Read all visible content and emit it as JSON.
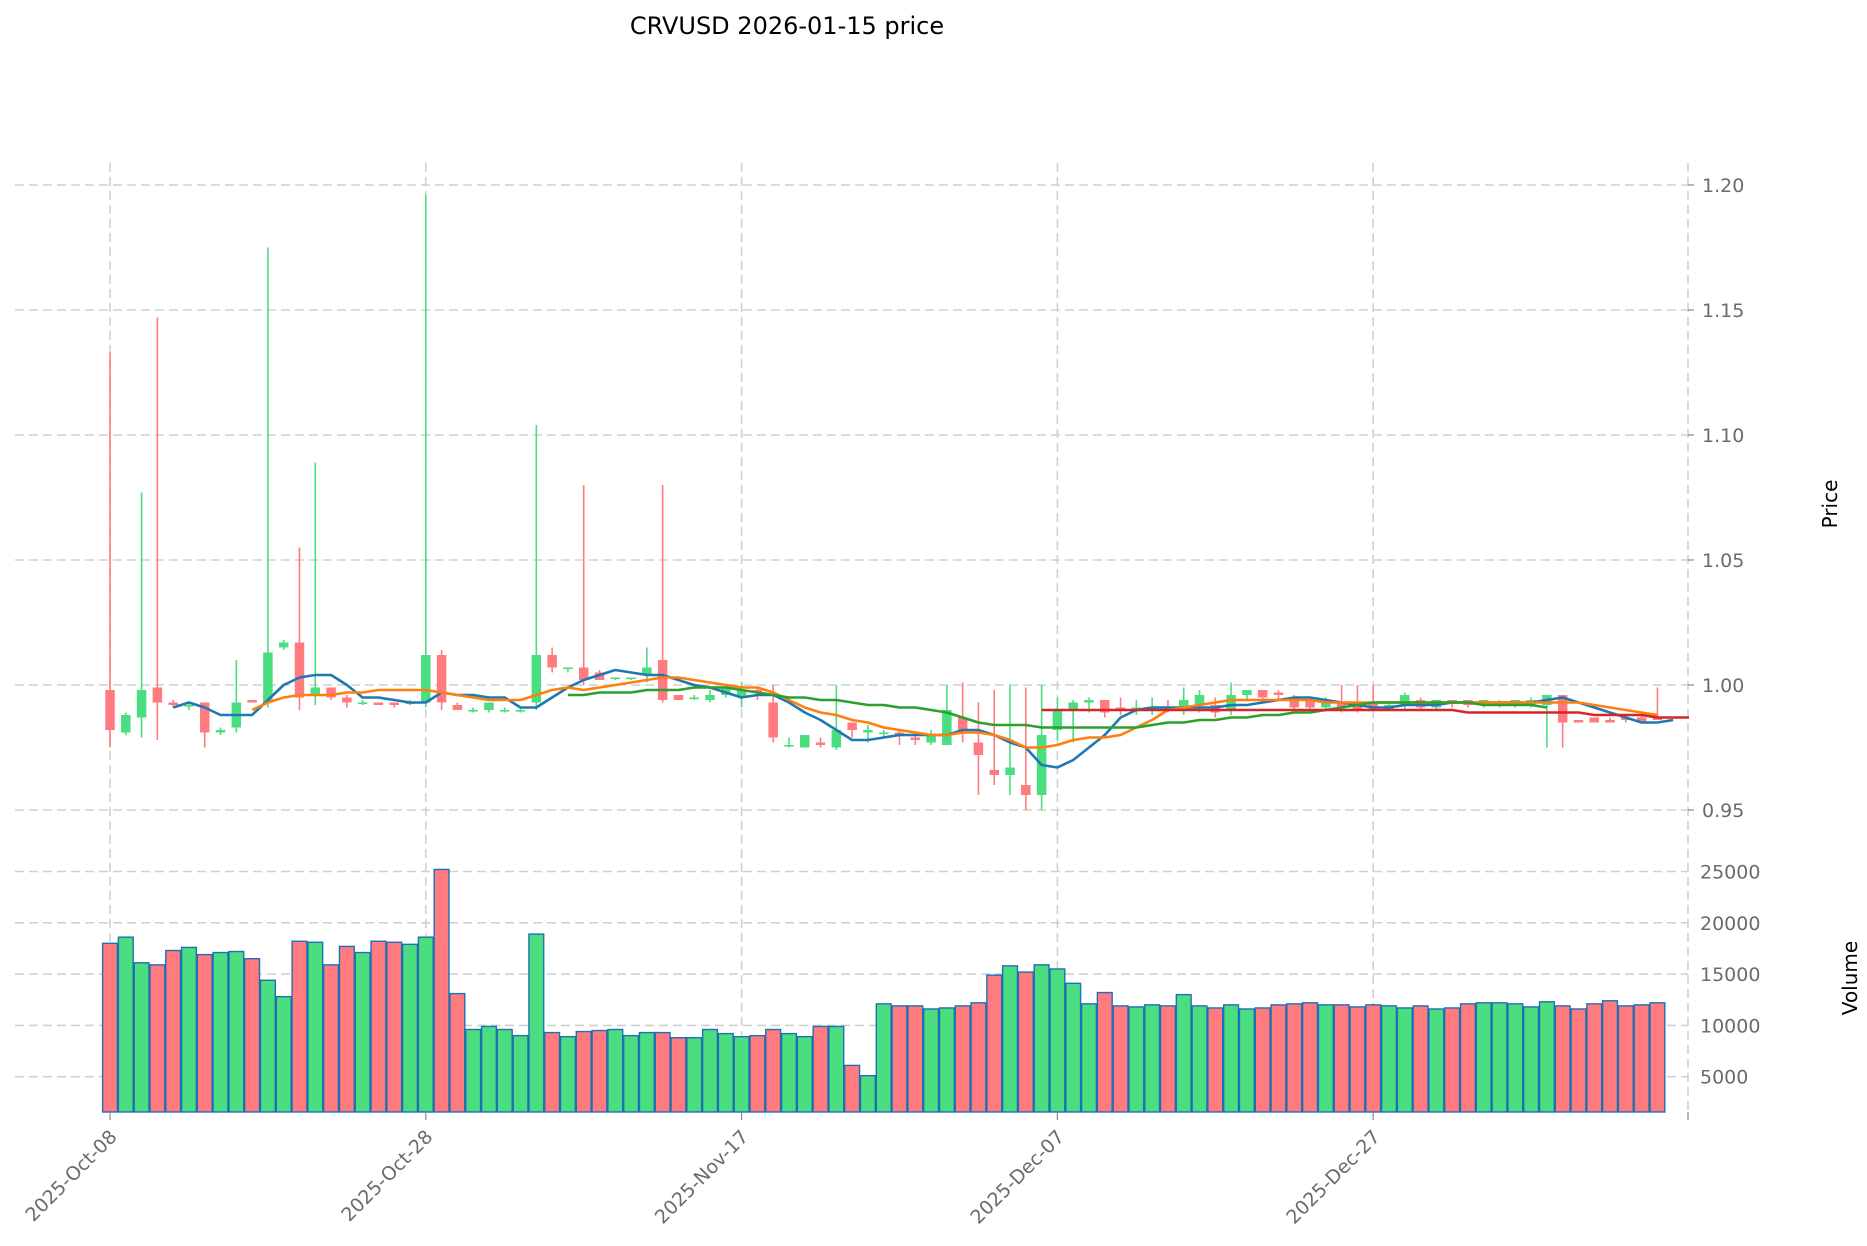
{
  "chart_data": {
    "type": "candlestick",
    "title": "CRVUSD  2026-01-15  price",
    "price_panel": {
      "ylabel": "Price",
      "yticks": [
        0.95,
        1.0,
        1.05,
        1.1,
        1.15,
        1.2
      ],
      "ytick_labels": [
        "0.95",
        "1.00",
        "1.05",
        "1.10",
        "1.15",
        "1.20"
      ],
      "ylim": [
        0.93,
        1.21
      ]
    },
    "volume_panel": {
      "ylabel": "Volume",
      "yticks": [
        5000,
        10000,
        15000,
        20000,
        25000
      ],
      "ytick_labels": [
        "5000",
        "10000",
        "15000",
        "20000",
        "25000"
      ],
      "ylim": [
        0,
        26000
      ]
    },
    "x_ticks": [
      "2025-Oct-08",
      "2025-Oct-28",
      "2025-Nov-17",
      "2025-Dec-07",
      "2025-Dec-27"
    ],
    "x_tick_index": [
      0,
      20,
      40,
      60,
      80
    ],
    "colors": {
      "up": "#4ade80",
      "down": "#ff7b7f",
      "volume_edge": "#1f6fb4",
      "ma_blue": "#1f77b4",
      "ma_orange": "#ff7f0e",
      "ma_green": "#2ca02c",
      "ma_red": "#d62728",
      "grid": "#d0d0d0"
    },
    "candles": [
      {
        "o": 0.998,
        "h": 1.133,
        "l": 0.975,
        "c": 0.982,
        "v": 18000
      },
      {
        "o": 0.981,
        "h": 0.989,
        "l": 0.98,
        "c": 0.988,
        "v": 18600
      },
      {
        "o": 0.987,
        "h": 1.077,
        "l": 0.979,
        "c": 0.998,
        "v": 16100
      },
      {
        "o": 0.999,
        "h": 1.147,
        "l": 0.978,
        "c": 0.993,
        "v": 15900
      },
      {
        "o": 0.993,
        "h": 0.994,
        "l": 0.991,
        "c": 0.992,
        "v": 17300
      },
      {
        "o": 0.992,
        "h": 0.993,
        "l": 0.99,
        "c": 0.992,
        "v": 17600
      },
      {
        "o": 0.993,
        "h": 0.993,
        "l": 0.975,
        "c": 0.981,
        "v": 16900
      },
      {
        "o": 0.981,
        "h": 0.983,
        "l": 0.98,
        "c": 0.982,
        "v": 17100
      },
      {
        "o": 0.983,
        "h": 1.01,
        "l": 0.981,
        "c": 0.993,
        "v": 17200
      },
      {
        "o": 0.994,
        "h": 0.994,
        "l": 0.993,
        "c": 0.993,
        "v": 16500
      },
      {
        "o": 0.993,
        "h": 1.175,
        "l": 0.991,
        "c": 1.013,
        "v": 14400
      },
      {
        "o": 1.015,
        "h": 1.018,
        "l": 1.014,
        "c": 1.017,
        "v": 12800
      },
      {
        "o": 1.017,
        "h": 1.055,
        "l": 0.99,
        "c": 0.995,
        "v": 18200
      },
      {
        "o": 0.996,
        "h": 1.089,
        "l": 0.992,
        "c": 0.999,
        "v": 18100
      },
      {
        "o": 0.999,
        "h": 0.999,
        "l": 0.994,
        "c": 0.995,
        "v": 15900
      },
      {
        "o": 0.995,
        "h": 0.996,
        "l": 0.991,
        "c": 0.993,
        "v": 17700
      },
      {
        "o": 0.993,
        "h": 0.994,
        "l": 0.992,
        "c": 0.993,
        "v": 17100
      },
      {
        "o": 0.993,
        "h": 0.993,
        "l": 0.992,
        "c": 0.992,
        "v": 18200
      },
      {
        "o": 0.993,
        "h": 0.993,
        "l": 0.991,
        "c": 0.992,
        "v": 18100
      },
      {
        "o": 0.993,
        "h": 0.994,
        "l": 0.992,
        "c": 0.993,
        "v": 17900
      },
      {
        "o": 0.993,
        "h": 1.196,
        "l": 0.991,
        "c": 1.012,
        "v": 18600
      },
      {
        "o": 1.012,
        "h": 1.014,
        "l": 0.99,
        "c": 0.993,
        "v": 25200
      },
      {
        "o": 0.992,
        "h": 0.993,
        "l": 0.99,
        "c": 0.99,
        "v": 13100
      },
      {
        "o": 0.99,
        "h": 0.991,
        "l": 0.989,
        "c": 0.99,
        "v": 9600
      },
      {
        "o": 0.99,
        "h": 0.993,
        "l": 0.989,
        "c": 0.993,
        "v": 9900
      },
      {
        "o": 0.99,
        "h": 0.991,
        "l": 0.989,
        "c": 0.99,
        "v": 9600
      },
      {
        "o": 0.99,
        "h": 0.991,
        "l": 0.989,
        "c": 0.99,
        "v": 9000
      },
      {
        "o": 0.993,
        "h": 1.104,
        "l": 0.99,
        "c": 1.012,
        "v": 18900
      },
      {
        "o": 1.012,
        "h": 1.015,
        "l": 1.005,
        "c": 1.007,
        "v": 9300
      },
      {
        "o": 1.007,
        "h": 1.007,
        "l": 1.005,
        "c": 1.007,
        "v": 8900
      },
      {
        "o": 1.007,
        "h": 1.08,
        "l": 1.0,
        "c": 1.002,
        "v": 9400
      },
      {
        "o": 1.005,
        "h": 1.006,
        "l": 1.002,
        "c": 1.002,
        "v": 9500
      },
      {
        "o": 1.003,
        "h": 1.003,
        "l": 1.002,
        "c": 1.003,
        "v": 9600
      },
      {
        "o": 1.003,
        "h": 1.003,
        "l": 1.002,
        "c": 1.003,
        "v": 9000
      },
      {
        "o": 1.004,
        "h": 1.015,
        "l": 1.001,
        "c": 1.007,
        "v": 9300
      },
      {
        "o": 1.01,
        "h": 1.08,
        "l": 0.993,
        "c": 0.994,
        "v": 9300
      },
      {
        "o": 0.996,
        "h": 0.996,
        "l": 0.994,
        "c": 0.994,
        "v": 8800
      },
      {
        "o": 0.995,
        "h": 0.996,
        "l": 0.994,
        "c": 0.995,
        "v": 8800
      },
      {
        "o": 0.994,
        "h": 0.998,
        "l": 0.993,
        "c": 0.996,
        "v": 9600
      },
      {
        "o": 0.996,
        "h": 0.999,
        "l": 0.995,
        "c": 0.999,
        "v": 9200
      },
      {
        "o": 0.995,
        "h": 1.001,
        "l": 0.991,
        "c": 0.998,
        "v": 8900
      },
      {
        "o": 0.998,
        "h": 0.999,
        "l": 0.994,
        "c": 0.997,
        "v": 9000
      },
      {
        "o": 0.993,
        "h": 1.0,
        "l": 0.977,
        "c": 0.979,
        "v": 9600
      },
      {
        "o": 0.976,
        "h": 0.979,
        "l": 0.975,
        "c": 0.976,
        "v": 9200
      },
      {
        "o": 0.975,
        "h": 0.98,
        "l": 0.975,
        "c": 0.98,
        "v": 8900
      },
      {
        "o": 0.977,
        "h": 0.979,
        "l": 0.975,
        "c": 0.976,
        "v": 9900
      },
      {
        "o": 0.975,
        "h": 1.0,
        "l": 0.974,
        "c": 0.982,
        "v": 9900
      },
      {
        "o": 0.985,
        "h": 0.985,
        "l": 0.979,
        "c": 0.982,
        "v": 6100
      },
      {
        "o": 0.981,
        "h": 0.984,
        "l": 0.977,
        "c": 0.982,
        "v": 5100
      },
      {
        "o": 0.981,
        "h": 0.982,
        "l": 0.979,
        "c": 0.981,
        "v": 12100
      },
      {
        "o": 0.981,
        "h": 0.982,
        "l": 0.976,
        "c": 0.98,
        "v": 11900
      },
      {
        "o": 0.979,
        "h": 0.98,
        "l": 0.976,
        "c": 0.978,
        "v": 11900
      },
      {
        "o": 0.977,
        "h": 0.982,
        "l": 0.976,
        "c": 0.98,
        "v": 11600
      },
      {
        "o": 0.976,
        "h": 1.0,
        "l": 0.976,
        "c": 0.99,
        "v": 11700
      },
      {
        "o": 0.987,
        "h": 1.001,
        "l": 0.977,
        "c": 0.982,
        "v": 11900
      },
      {
        "o": 0.977,
        "h": 0.993,
        "l": 0.956,
        "c": 0.972,
        "v": 12200
      },
      {
        "o": 0.966,
        "h": 0.998,
        "l": 0.96,
        "c": 0.964,
        "v": 14900
      },
      {
        "o": 0.964,
        "h": 1.0,
        "l": 0.956,
        "c": 0.967,
        "v": 15800
      },
      {
        "o": 0.96,
        "h": 0.999,
        "l": 0.95,
        "c": 0.956,
        "v": 15200
      },
      {
        "o": 0.956,
        "h": 1.0,
        "l": 0.95,
        "c": 0.98,
        "v": 15900
      },
      {
        "o": 0.982,
        "h": 0.995,
        "l": 0.978,
        "c": 0.99,
        "v": 15500
      },
      {
        "o": 0.99,
        "h": 0.994,
        "l": 0.977,
        "c": 0.993,
        "v": 14100
      },
      {
        "o": 0.993,
        "h": 0.995,
        "l": 0.989,
        "c": 0.994,
        "v": 12100
      },
      {
        "o": 0.994,
        "h": 0.993,
        "l": 0.987,
        "c": 0.989,
        "v": 13200
      },
      {
        "o": 0.991,
        "h": 0.995,
        "l": 0.988,
        "c": 0.99,
        "v": 11900
      },
      {
        "o": 0.99,
        "h": 0.994,
        "l": 0.988,
        "c": 0.991,
        "v": 11800
      },
      {
        "o": 0.99,
        "h": 0.995,
        "l": 0.988,
        "c": 0.991,
        "v": 12000
      },
      {
        "o": 0.991,
        "h": 0.994,
        "l": 0.989,
        "c": 0.99,
        "v": 11900
      },
      {
        "o": 0.991,
        "h": 0.999,
        "l": 0.988,
        "c": 0.994,
        "v": 13000
      },
      {
        "o": 0.992,
        "h": 0.998,
        "l": 0.989,
        "c": 0.996,
        "v": 11900
      },
      {
        "o": 0.992,
        "h": 0.995,
        "l": 0.987,
        "c": 0.989,
        "v": 11700
      },
      {
        "o": 0.99,
        "h": 1.001,
        "l": 0.988,
        "c": 0.996,
        "v": 12000
      },
      {
        "o": 0.996,
        "h": 0.998,
        "l": 0.994,
        "c": 0.998,
        "v": 11600
      },
      {
        "o": 0.998,
        "h": 0.998,
        "l": 0.993,
        "c": 0.995,
        "v": 11700
      },
      {
        "o": 0.997,
        "h": 0.998,
        "l": 0.994,
        "c": 0.996,
        "v": 12000
      },
      {
        "o": 0.995,
        "h": 0.996,
        "l": 0.99,
        "c": 0.991,
        "v": 12100
      },
      {
        "o": 0.994,
        "h": 0.995,
        "l": 0.99,
        "c": 0.991,
        "v": 12200
      },
      {
        "o": 0.991,
        "h": 0.995,
        "l": 0.99,
        "c": 0.993,
        "v": 12000
      },
      {
        "o": 0.993,
        "h": 1.0,
        "l": 0.989,
        "c": 0.991,
        "v": 12000
      },
      {
        "o": 0.992,
        "h": 1.0,
        "l": 0.989,
        "c": 0.99,
        "v": 11800
      },
      {
        "o": 0.993,
        "h": 1.0,
        "l": 0.99,
        "c": 0.99,
        "v": 12000
      },
      {
        "o": 0.99,
        "h": 0.993,
        "l": 0.99,
        "c": 0.992,
        "v": 11900
      },
      {
        "o": 0.992,
        "h": 0.997,
        "l": 0.99,
        "c": 0.996,
        "v": 11700
      },
      {
        "o": 0.994,
        "h": 0.995,
        "l": 0.99,
        "c": 0.991,
        "v": 11900
      },
      {
        "o": 0.991,
        "h": 0.993,
        "l": 0.99,
        "c": 0.994,
        "v": 11600
      },
      {
        "o": 0.994,
        "h": 0.994,
        "l": 0.991,
        "c": 0.993,
        "v": 11700
      },
      {
        "o": 0.994,
        "h": 0.994,
        "l": 0.991,
        "c": 0.992,
        "v": 12100
      },
      {
        "o": 0.992,
        "h": 0.994,
        "l": 0.991,
        "c": 0.994,
        "v": 12200
      },
      {
        "o": 0.992,
        "h": 0.994,
        "l": 0.991,
        "c": 0.993,
        "v": 12200
      },
      {
        "o": 0.992,
        "h": 0.994,
        "l": 0.991,
        "c": 0.994,
        "v": 12100
      },
      {
        "o": 0.992,
        "h": 0.995,
        "l": 0.991,
        "c": 0.994,
        "v": 11800
      },
      {
        "o": 0.992,
        "h": 0.996,
        "l": 0.975,
        "c": 0.996,
        "v": 12300
      },
      {
        "o": 0.996,
        "h": 0.996,
        "l": 0.975,
        "c": 0.985,
        "v": 11900
      },
      {
        "o": 0.986,
        "h": 0.986,
        "l": 0.985,
        "c": 0.985,
        "v": 11600
      },
      {
        "o": 0.987,
        "h": 0.987,
        "l": 0.985,
        "c": 0.985,
        "v": 12100
      },
      {
        "o": 0.986,
        "h": 0.987,
        "l": 0.985,
        "c": 0.985,
        "v": 12400
      },
      {
        "o": 0.987,
        "h": 0.987,
        "l": 0.985,
        "c": 0.986,
        "v": 11900
      },
      {
        "o": 0.987,
        "h": 0.988,
        "l": 0.985,
        "c": 0.985,
        "v": 12000
      },
      {
        "o": 0.987,
        "h": 0.999,
        "l": 0.986,
        "c": 0.986,
        "v": 12200
      }
    ],
    "moving_averages": [
      {
        "name": "MA-short",
        "color": "#1f77b4",
        "start": 4,
        "values": [
          0.991,
          0.993,
          0.991,
          0.988,
          0.988,
          0.988,
          0.994,
          1.0,
          1.003,
          1.004,
          1.004,
          1.0,
          0.995,
          0.995,
          0.994,
          0.993,
          0.993,
          0.997,
          0.996,
          0.996,
          0.995,
          0.995,
          0.991,
          0.991,
          0.995,
          0.999,
          1.002,
          1.004,
          1.006,
          1.005,
          1.004,
          1.004,
          1.002,
          1.0,
          0.999,
          0.997,
          0.995,
          0.996,
          0.996,
          0.993,
          0.989,
          0.986,
          0.982,
          0.978,
          0.978,
          0.979,
          0.98,
          0.98,
          0.98,
          0.98,
          0.982,
          0.982,
          0.98,
          0.977,
          0.975,
          0.968,
          0.967,
          0.97,
          0.975,
          0.98,
          0.987,
          0.99,
          0.991,
          0.991,
          0.991,
          0.991,
          0.991,
          0.992,
          0.992,
          0.993,
          0.994,
          0.995,
          0.995,
          0.994,
          0.993,
          0.992,
          0.991,
          0.991,
          0.992,
          0.992,
          0.992,
          0.993,
          0.993,
          0.993,
          0.993,
          0.993,
          0.993,
          0.994,
          0.995,
          0.993,
          0.991,
          0.989,
          0.987,
          0.985,
          0.985,
          0.986
        ]
      },
      {
        "name": "MA-mid",
        "color": "#ff7f0e",
        "start": 9,
        "values": [
          0.99,
          0.993,
          0.995,
          0.996,
          0.996,
          0.996,
          0.997,
          0.997,
          0.998,
          0.998,
          0.998,
          0.998,
          0.997,
          0.996,
          0.995,
          0.994,
          0.994,
          0.994,
          0.996,
          0.998,
          0.999,
          0.998,
          0.999,
          1.0,
          1.001,
          1.002,
          1.003,
          1.003,
          1.002,
          1.001,
          1.0,
          0.999,
          0.999,
          0.997,
          0.994,
          0.991,
          0.989,
          0.988,
          0.986,
          0.985,
          0.983,
          0.982,
          0.981,
          0.98,
          0.98,
          0.981,
          0.981,
          0.98,
          0.978,
          0.975,
          0.975,
          0.976,
          0.978,
          0.979,
          0.979,
          0.98,
          0.983,
          0.986,
          0.99,
          0.991,
          0.992,
          0.993,
          0.994,
          0.994,
          0.994,
          0.994,
          0.994,
          0.994,
          0.993,
          0.993,
          0.993,
          0.993,
          0.993,
          0.993,
          0.993,
          0.993,
          0.993,
          0.993,
          0.993,
          0.993,
          0.993,
          0.993,
          0.993,
          0.993,
          0.993,
          0.992,
          0.991,
          0.99,
          0.989,
          0.988
        ]
      },
      {
        "name": "MA-long",
        "color": "#2ca02c",
        "start": 29,
        "values": [
          0.996,
          0.996,
          0.997,
          0.997,
          0.997,
          0.998,
          0.998,
          0.998,
          0.999,
          0.999,
          0.999,
          0.998,
          0.997,
          0.996,
          0.995,
          0.995,
          0.994,
          0.994,
          0.993,
          0.992,
          0.992,
          0.991,
          0.991,
          0.99,
          0.989,
          0.987,
          0.985,
          0.984,
          0.984,
          0.984,
          0.983,
          0.983,
          0.983,
          0.983,
          0.983,
          0.983,
          0.983,
          0.984,
          0.985,
          0.985,
          0.986,
          0.986,
          0.987,
          0.987,
          0.988,
          0.988,
          0.989,
          0.989,
          0.99,
          0.991,
          0.992,
          0.993,
          0.993,
          0.993,
          0.993,
          0.993,
          0.993,
          0.993,
          0.992,
          0.992,
          0.992,
          0.992,
          0.991
        ]
      },
      {
        "name": "MA-longest",
        "color": "#d62728",
        "start": 59,
        "values": [
          0.99,
          0.99,
          0.99,
          0.99,
          0.99,
          0.99,
          0.99,
          0.99,
          0.99,
          0.99,
          0.99,
          0.99,
          0.99,
          0.99,
          0.99,
          0.99,
          0.99,
          0.99,
          0.99,
          0.99,
          0.99,
          0.99,
          0.99,
          0.99,
          0.99,
          0.99,
          0.99,
          0.989,
          0.989,
          0.989,
          0.989,
          0.989,
          0.989,
          0.989,
          0.989,
          0.988,
          0.988,
          0.988,
          0.988,
          0.987,
          0.987,
          0.987
        ]
      }
    ]
  }
}
